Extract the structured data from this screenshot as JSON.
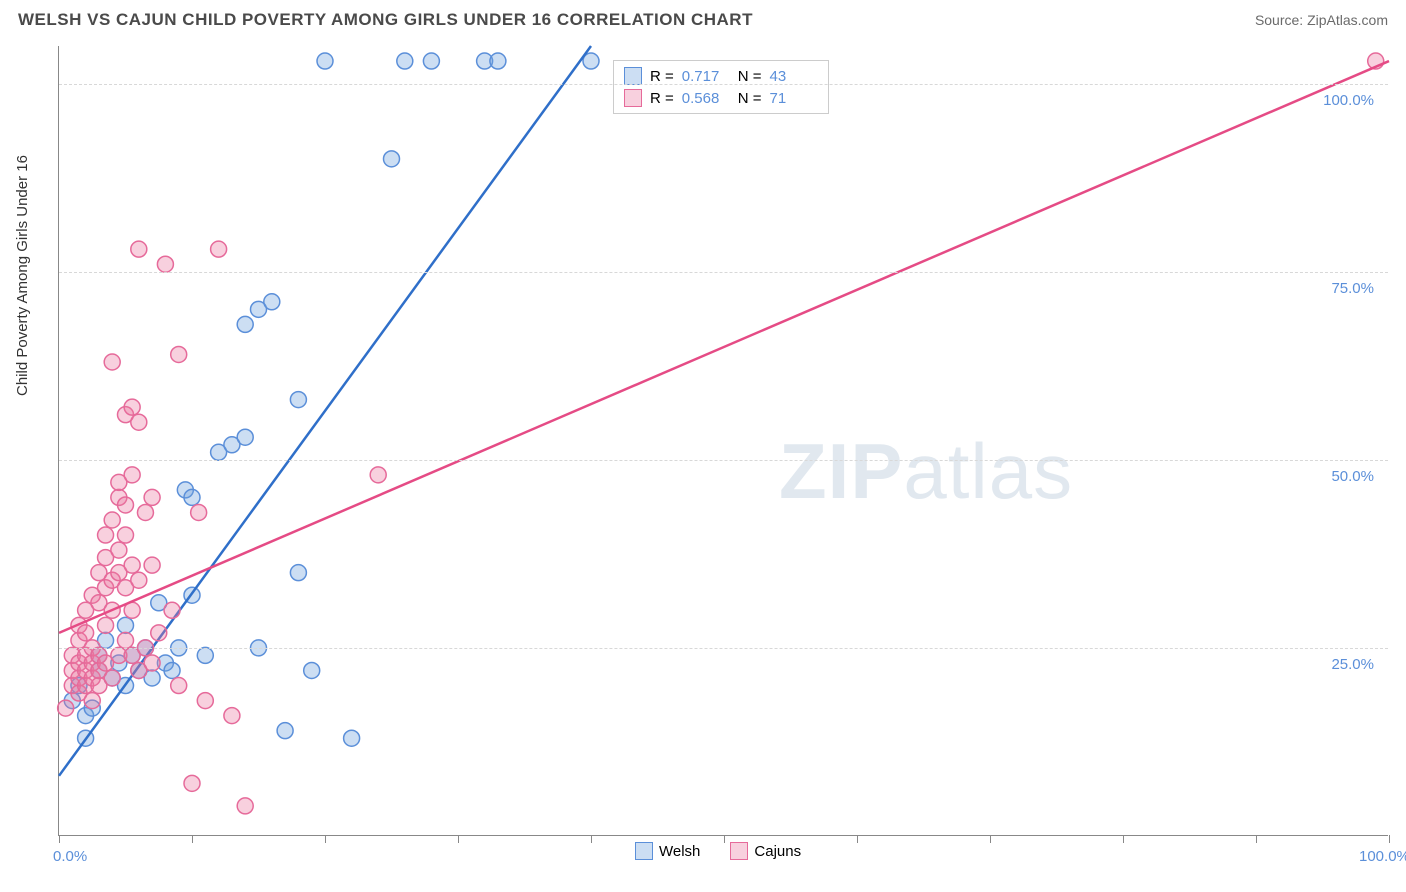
{
  "header": {
    "title": "WELSH VS CAJUN CHILD POVERTY AMONG GIRLS UNDER 16 CORRELATION CHART",
    "source_label": "Source: ZipAtlas.com"
  },
  "chart": {
    "type": "scatter",
    "ylabel": "Child Poverty Among Girls Under 16",
    "xlim": [
      0,
      100
    ],
    "ylim": [
      0,
      105
    ],
    "xtick_positions": [
      0,
      10,
      20,
      30,
      40,
      50,
      60,
      70,
      80,
      90,
      100
    ],
    "xtick_labels": {
      "0": "0.0%",
      "100": "100.0%"
    },
    "ytick_positions": [
      25,
      50,
      75,
      100
    ],
    "ytick_labels": {
      "25": "25.0%",
      "50": "50.0%",
      "75": "75.0%",
      "100": "100.0%"
    },
    "grid_color": "#d8d8d8",
    "background_color": "#ffffff",
    "axis_color": "#888888",
    "label_fontsize": 15,
    "tick_color": "#5b8fd9",
    "marker_radius": 8,
    "marker_stroke_width": 1.5,
    "line_width": 2.5,
    "series": [
      {
        "name": "Welsh",
        "fill_color": "rgba(110,160,220,0.35)",
        "stroke_color": "#5b8fd9",
        "line_color": "#2f6fc9",
        "R": "0.717",
        "N": "43",
        "trend": {
          "x1": 0,
          "y1": 8,
          "x2": 40,
          "y2": 105
        },
        "points": [
          [
            1,
            18
          ],
          [
            1.5,
            20
          ],
          [
            2,
            13
          ],
          [
            2,
            16
          ],
          [
            2.5,
            17
          ],
          [
            3,
            22
          ],
          [
            3,
            24
          ],
          [
            3.5,
            26
          ],
          [
            4,
            21
          ],
          [
            4.5,
            23
          ],
          [
            5,
            20
          ],
          [
            5,
            28
          ],
          [
            5.5,
            24
          ],
          [
            6,
            22
          ],
          [
            6.5,
            25
          ],
          [
            7,
            21
          ],
          [
            7.5,
            31
          ],
          [
            8,
            23
          ],
          [
            8.5,
            22
          ],
          [
            9,
            25
          ],
          [
            9.5,
            46
          ],
          [
            10,
            32
          ],
          [
            10,
            45
          ],
          [
            11,
            24
          ],
          [
            12,
            51
          ],
          [
            13,
            52
          ],
          [
            14,
            53
          ],
          [
            14,
            68
          ],
          [
            15,
            25
          ],
          [
            15,
            70
          ],
          [
            16,
            71
          ],
          [
            17,
            14
          ],
          [
            18,
            35
          ],
          [
            18,
            58
          ],
          [
            19,
            22
          ],
          [
            20,
            103
          ],
          [
            22,
            13
          ],
          [
            25,
            90
          ],
          [
            26,
            103
          ],
          [
            28,
            103
          ],
          [
            32,
            103
          ],
          [
            33,
            103
          ],
          [
            40,
            103
          ]
        ]
      },
      {
        "name": "Cajuns",
        "fill_color": "rgba(235,120,160,0.35)",
        "stroke_color": "#e66a9a",
        "line_color": "#e54b85",
        "R": "0.568",
        "N": "71",
        "trend": {
          "x1": 0,
          "y1": 27,
          "x2": 100,
          "y2": 103
        },
        "points": [
          [
            0.5,
            17
          ],
          [
            1,
            20
          ],
          [
            1,
            22
          ],
          [
            1,
            24
          ],
          [
            1.5,
            19
          ],
          [
            1.5,
            21
          ],
          [
            1.5,
            23
          ],
          [
            1.5,
            26
          ],
          [
            1.5,
            28
          ],
          [
            2,
            20
          ],
          [
            2,
            22
          ],
          [
            2,
            24
          ],
          [
            2,
            27
          ],
          [
            2,
            30
          ],
          [
            2.5,
            18
          ],
          [
            2.5,
            21
          ],
          [
            2.5,
            23
          ],
          [
            2.5,
            25
          ],
          [
            2.5,
            32
          ],
          [
            3,
            20
          ],
          [
            3,
            22
          ],
          [
            3,
            24
          ],
          [
            3,
            31
          ],
          [
            3,
            35
          ],
          [
            3.5,
            23
          ],
          [
            3.5,
            28
          ],
          [
            3.5,
            33
          ],
          [
            3.5,
            37
          ],
          [
            3.5,
            40
          ],
          [
            4,
            21
          ],
          [
            4,
            30
          ],
          [
            4,
            34
          ],
          [
            4,
            42
          ],
          [
            4,
            63
          ],
          [
            4.5,
            24
          ],
          [
            4.5,
            35
          ],
          [
            4.5,
            38
          ],
          [
            4.5,
            45
          ],
          [
            4.5,
            47
          ],
          [
            5,
            26
          ],
          [
            5,
            33
          ],
          [
            5,
            40
          ],
          [
            5,
            44
          ],
          [
            5,
            56
          ],
          [
            5.5,
            24
          ],
          [
            5.5,
            30
          ],
          [
            5.5,
            36
          ],
          [
            5.5,
            48
          ],
          [
            5.5,
            57
          ],
          [
            6,
            22
          ],
          [
            6,
            34
          ],
          [
            6,
            55
          ],
          [
            6,
            78
          ],
          [
            6.5,
            25
          ],
          [
            6.5,
            43
          ],
          [
            7,
            23
          ],
          [
            7,
            36
          ],
          [
            7,
            45
          ],
          [
            7.5,
            27
          ],
          [
            8,
            76
          ],
          [
            8.5,
            30
          ],
          [
            9,
            20
          ],
          [
            9,
            64
          ],
          [
            10,
            7
          ],
          [
            10.5,
            43
          ],
          [
            11,
            18
          ],
          [
            12,
            78
          ],
          [
            13,
            16
          ],
          [
            14,
            4
          ],
          [
            24,
            48
          ],
          [
            99,
            103
          ]
        ]
      }
    ],
    "legend_top": {
      "rows": [
        {
          "swatch_fill": "rgba(110,160,220,0.35)",
          "swatch_stroke": "#5b8fd9",
          "r_label": "R =",
          "r_val": "0.717",
          "n_label": "N =",
          "n_val": "43"
        },
        {
          "swatch_fill": "rgba(235,120,160,0.35)",
          "swatch_stroke": "#e66a9a",
          "r_label": "R =",
          "r_val": "0.568",
          "n_label": "N =",
          "n_val": "71"
        }
      ]
    },
    "legend_bottom": [
      {
        "swatch_fill": "rgba(110,160,220,0.35)",
        "swatch_stroke": "#5b8fd9",
        "label": "Welsh"
      },
      {
        "swatch_fill": "rgba(235,120,160,0.35)",
        "swatch_stroke": "#e66a9a",
        "label": "Cajuns"
      }
    ],
    "watermark": {
      "bold": "ZIP",
      "light": "atlas",
      "color": "rgba(120,150,180,0.22)"
    }
  }
}
